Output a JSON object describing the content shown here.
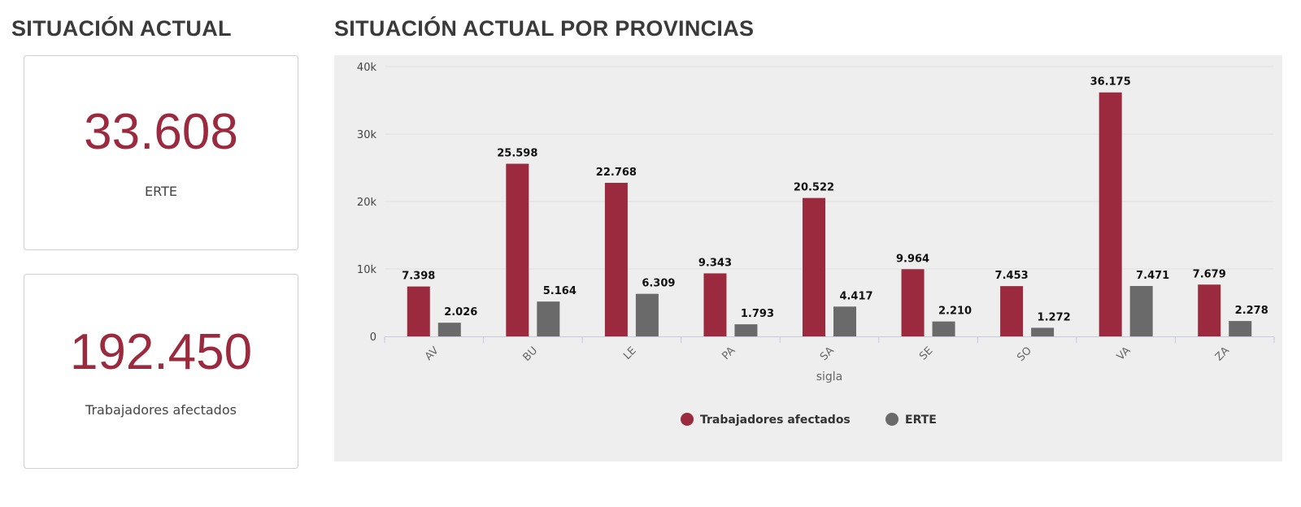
{
  "page": {
    "left_title": "SITUACIÓN ACTUAL",
    "right_title": "SITUACIÓN ACTUAL POR PROVINCIAS"
  },
  "kpis": [
    {
      "value": "33.608",
      "label": "ERTE"
    },
    {
      "value": "192.450",
      "label": "Trabajadores afectados"
    }
  ],
  "colors": {
    "trabajadores": "#9b2a3e",
    "erte": "#6a6a6a",
    "panel_bg": "#eeeeee",
    "grid": "#e0e0e0"
  },
  "chart_data": {
    "type": "bar",
    "title": "SITUACIÓN ACTUAL POR PROVINCIAS",
    "xlabel": "sigla",
    "ylabel": "",
    "ylim": [
      0,
      40000
    ],
    "y_ticks": [
      0,
      10000,
      20000,
      30000,
      40000
    ],
    "y_tick_labels": [
      "0",
      "10k",
      "20k",
      "30k",
      "40k"
    ],
    "categories": [
      "AV",
      "BU",
      "LE",
      "PA",
      "SA",
      "SE",
      "SO",
      "VA",
      "ZA"
    ],
    "series": [
      {
        "name": "Trabajadores afectados",
        "values": [
          7398,
          25598,
          22768,
          9343,
          20522,
          9964,
          7453,
          36175,
          7679
        ],
        "labels": [
          "7.398",
          "25.598",
          "22.768",
          "9.343",
          "20.522",
          "9.964",
          "7.453",
          "36.175",
          "7.679"
        ]
      },
      {
        "name": "ERTE",
        "values": [
          2026,
          5164,
          6309,
          1793,
          4417,
          2210,
          1272,
          7471,
          2278
        ],
        "labels": [
          "2.026",
          "5.164",
          "6.309",
          "1.793",
          "4.417",
          "2.210",
          "1.272",
          "7.471",
          "2.278"
        ]
      }
    ],
    "legend": [
      "Trabajadores afectados",
      "ERTE"
    ],
    "legend_position": "bottom-center",
    "grid": true
  }
}
